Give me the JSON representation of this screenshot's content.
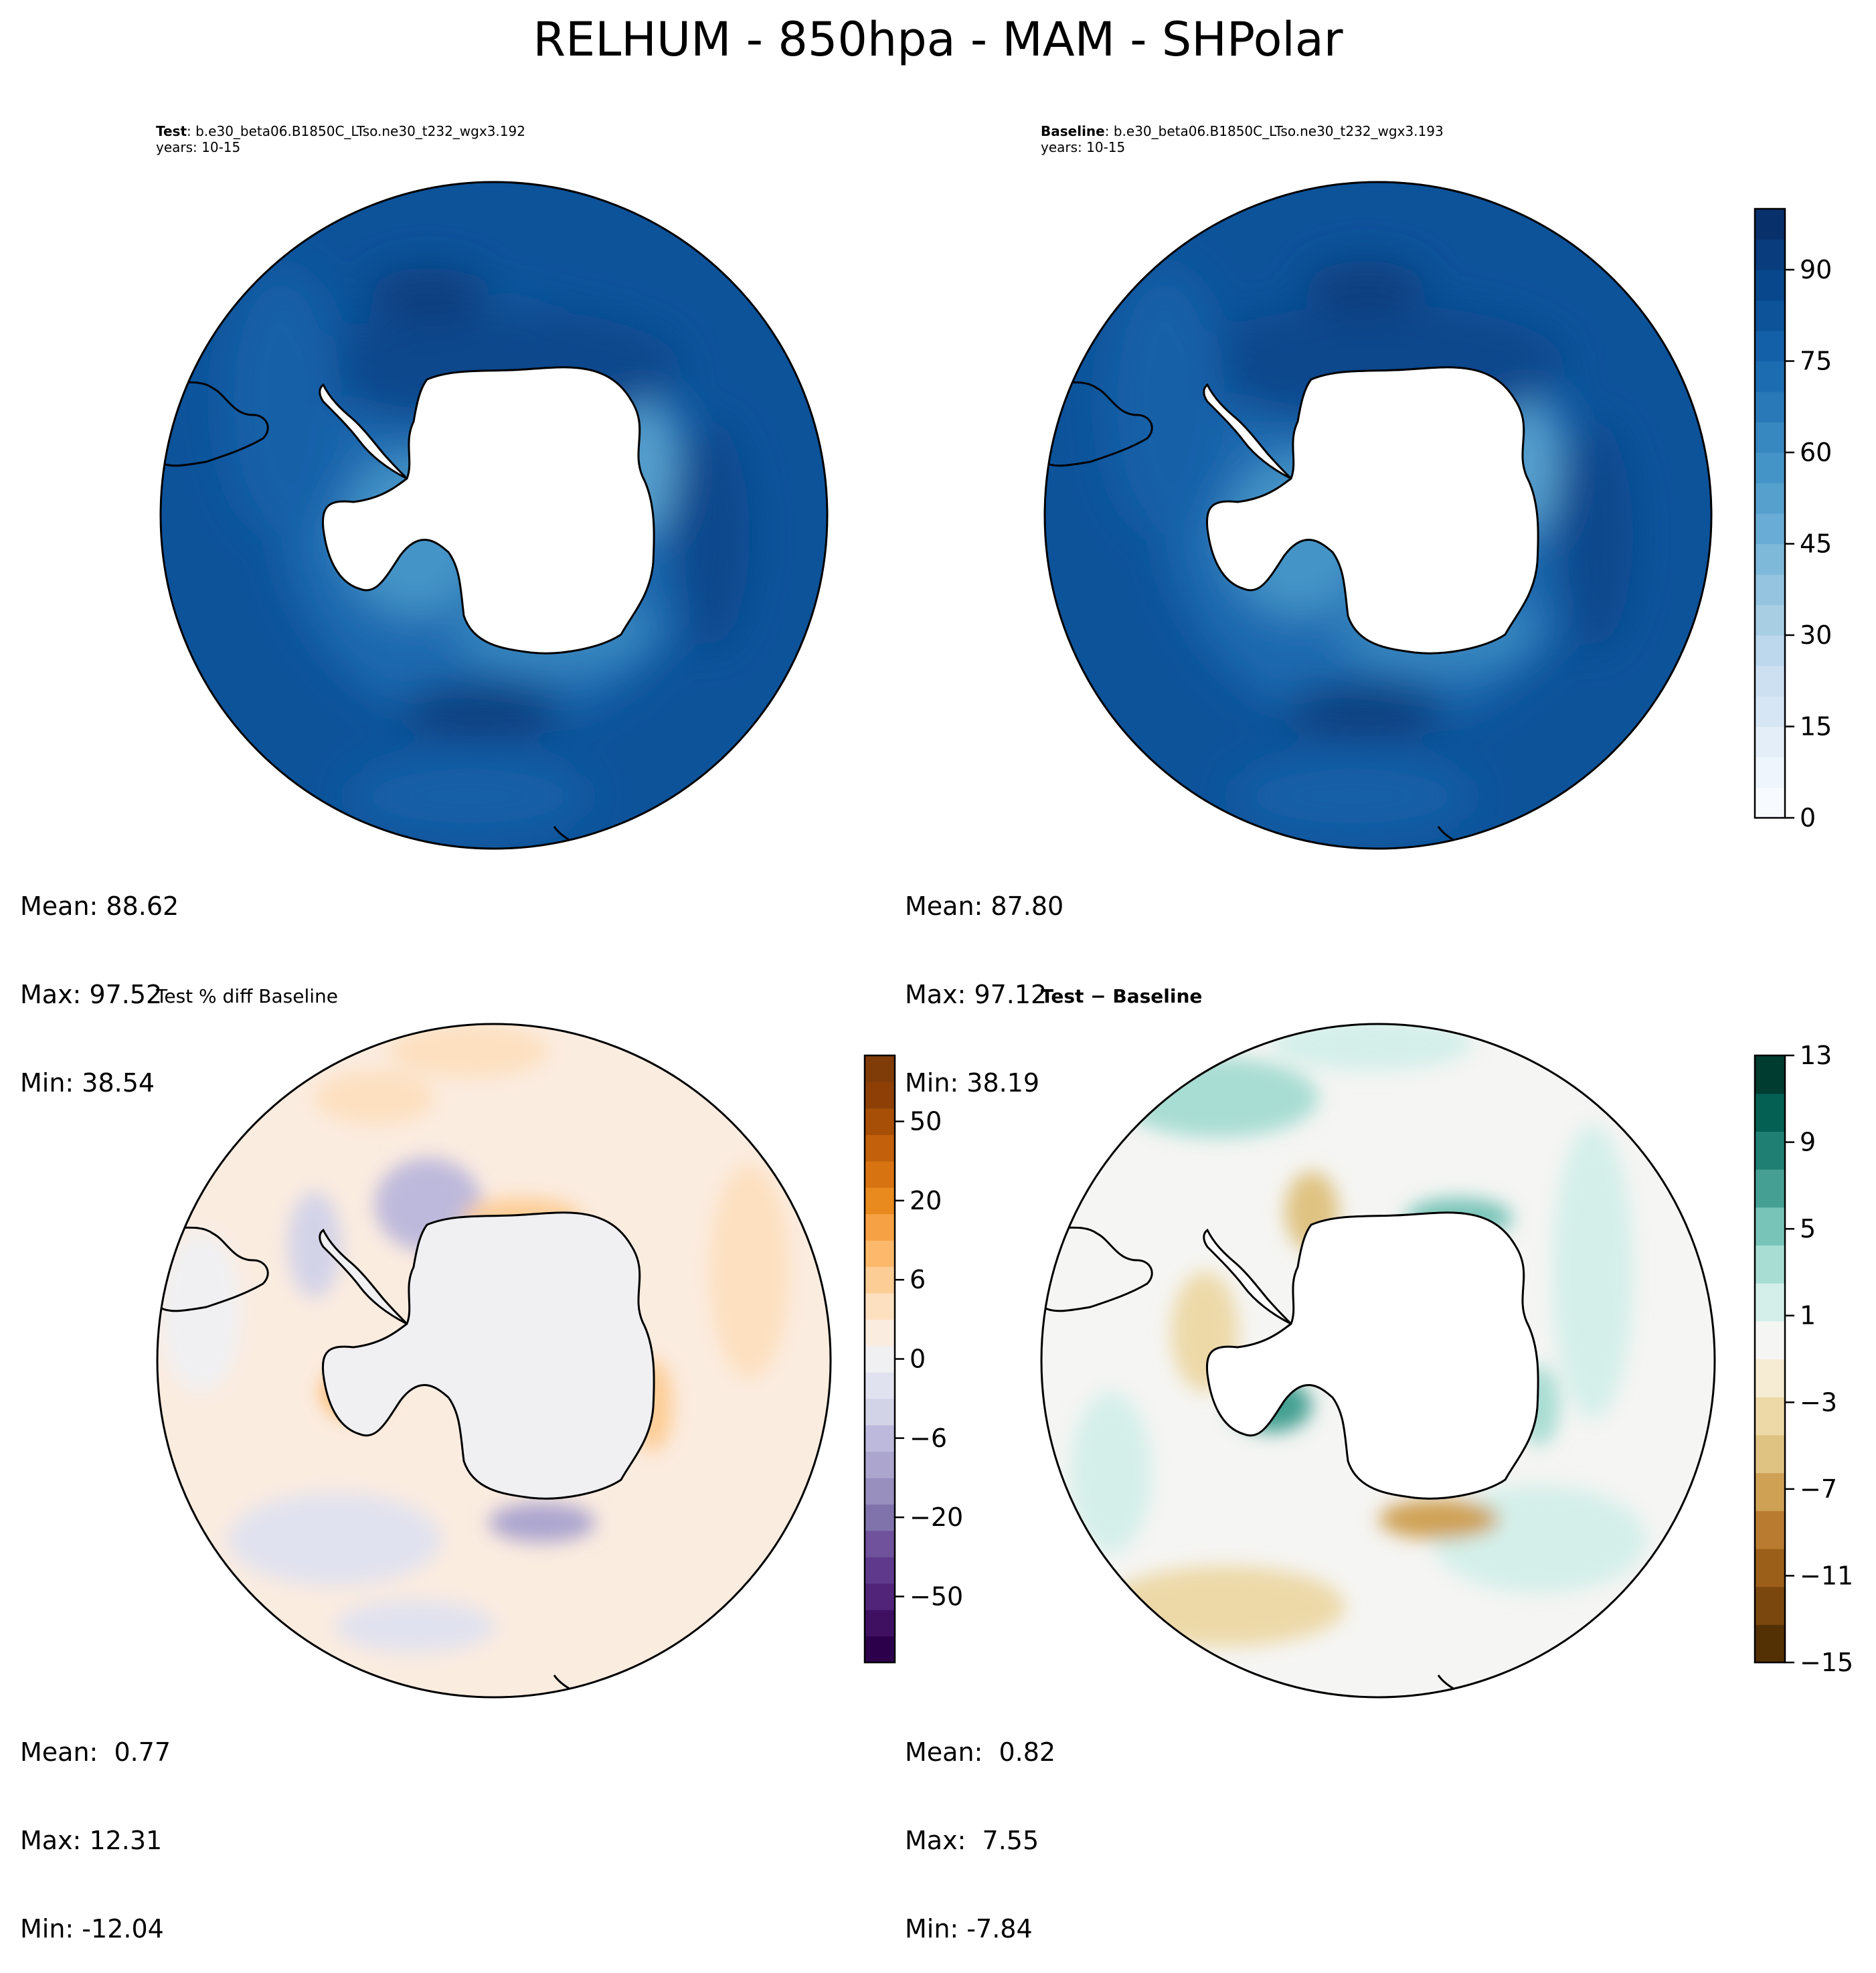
{
  "figure": {
    "suptitle": "RELHUM - 850hpa - MAM - SHPolar"
  },
  "panels": {
    "test": {
      "label": "Test",
      "case": ": b.e30_beta06.B1850C_LTso.ne30_t232_wgx3.192",
      "years": "years: 10-15",
      "mean": "Mean: 88.62",
      "max": "Max: 97.52",
      "min": "Min: 38.54"
    },
    "baseline": {
      "label": "Baseline",
      "case": ": b.e30_beta06.B1850C_LTso.ne30_t232_wgx3.193",
      "years": "years: 10-15",
      "mean": "Mean: 87.80",
      "max": "Max: 97.12",
      "min": "Min: 38.19"
    },
    "pctdiff": {
      "title": "Test % diff Baseline",
      "mean": "Mean:  0.77",
      "max": "Max: 12.31",
      "min": "Min: -12.04"
    },
    "diff": {
      "title": "Test − Baseline",
      "mean": "Mean:  0.82",
      "max": "Max:  7.55",
      "min": "Min: -7.84"
    }
  },
  "colorbars": {
    "relhum": {
      "ticks": [
        "0",
        "15",
        "30",
        "45",
        "60",
        "75",
        "90"
      ],
      "levels": 20,
      "colors": [
        "#f7fbff",
        "#eef5fc",
        "#e3eef9",
        "#d7e6f5",
        "#cde0f1",
        "#bdd7ec",
        "#a8cee4",
        "#94c4df",
        "#7fb9da",
        "#69acd5",
        "#56a0ce",
        "#4594c7",
        "#3787c0",
        "#2979b9",
        "#1c6cb1",
        "#1460a8",
        "#0d539a",
        "#08478c",
        "#083c7d",
        "#08306b"
      ]
    },
    "pctdiff": {
      "ticks": [
        "50",
        "20",
        "6",
        "0",
        "−6",
        "−20",
        "−50"
      ],
      "colors_bottom_to_top": [
        "#2d004b",
        "#3f1062",
        "#51247a",
        "#5f3a8c",
        "#6f519c",
        "#8073ac",
        "#998fbf",
        "#aca6cf",
        "#bdb9dc",
        "#d3d3e8",
        "#e1e2ef",
        "#f0f0f3",
        "#fbece0",
        "#fde0c0",
        "#fdcd96",
        "#fdb86b",
        "#f6a143",
        "#e98a1e",
        "#d87312",
        "#c2600b",
        "#a84f07",
        "#8d3f06",
        "#7f3b08"
      ]
    },
    "diff": {
      "ticks": [
        "13",
        "9",
        "5",
        "1",
        "−3",
        "−7",
        "−11",
        "−15"
      ],
      "colors_bottom_to_top": [
        "#543005",
        "#7a470f",
        "#9c5f19",
        "#b97b30",
        "#cfa155",
        "#dfc382",
        "#edd9a8",
        "#f6ebd3",
        "#f5f5f3",
        "#d4efea",
        "#a8ddd3",
        "#78c4b8",
        "#45a093",
        "#1f7f73",
        "#036052",
        "#003c30"
      ]
    }
  }
}
